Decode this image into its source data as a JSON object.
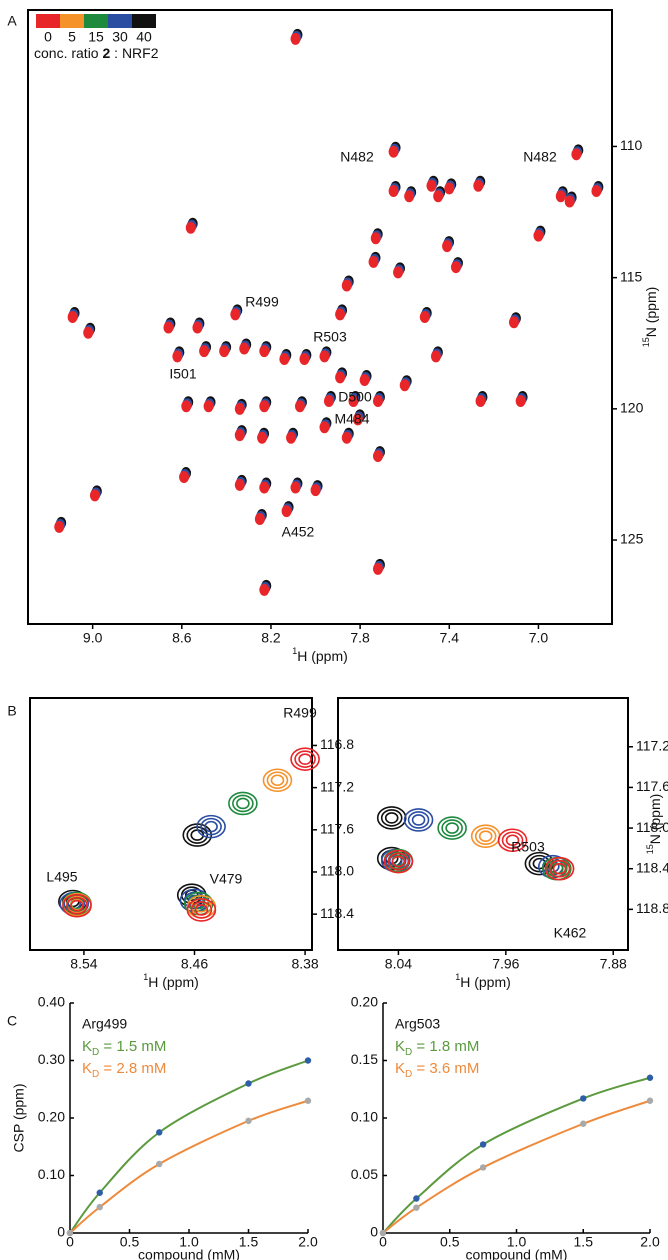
{
  "chart_data": [
    {
      "type": "scatter",
      "panel": "A",
      "x_label": {
        "sup": "1",
        "text": "H (ppm)"
      },
      "y_label": {
        "sup": "15",
        "text": "N (ppm)"
      },
      "xlim": [
        9.29,
        6.67
      ],
      "ylim": [
        128.2,
        104.8
      ],
      "xticks": [
        {
          "value": 9,
          "label": "9.0"
        },
        8.6,
        8.2,
        7.8,
        7.4,
        {
          "value": 7,
          "label": "7.0"
        }
      ],
      "yticks": [
        110,
        115,
        120,
        125
      ],
      "legend": {
        "labels": [
          "0",
          "5",
          "15",
          "30",
          "40"
        ],
        "colors": [
          "#e8262a",
          "#f5922a",
          "#1e8a3e",
          "#2b4ea2",
          "#111111"
        ],
        "caption": [
          "conc. ratio ",
          "2",
          " : NRF2"
        ]
      },
      "series": [
        {
          "color": "#e8262a",
          "x": [
            8.09,
            7.65,
            6.83,
            7.65,
            7.58,
            7.48,
            7.45,
            7.4,
            7.27,
            6.9,
            6.86,
            6.74,
            8.56,
            7.73,
            7.0,
            7.41,
            7.37,
            7.86,
            7.74,
            7.63,
            7.89,
            7.51,
            7.11,
            9.09,
            9.02,
            8.66,
            8.53,
            8.36,
            8.62,
            8.5,
            8.41,
            8.32,
            8.23,
            8.14,
            8.05,
            7.96,
            7.89,
            7.78,
            7.6,
            7.46,
            8.58,
            8.48,
            8.34,
            8.23,
            8.07,
            7.94,
            7.83,
            7.72,
            8.34,
            8.24,
            8.11,
            7.96,
            7.86,
            7.81,
            7.26,
            7.08,
            8.59,
            8.34,
            8.23,
            8.09,
            8.25,
            8.13,
            8.0,
            7.72,
            8.99,
            9.15,
            7.72,
            8.23
          ],
          "y": [
            105.9,
            110.2,
            110.3,
            111.7,
            111.9,
            111.5,
            111.9,
            111.6,
            111.5,
            111.9,
            112.1,
            111.7,
            113.1,
            113.5,
            113.4,
            113.8,
            114.6,
            115.3,
            114.4,
            114.8,
            116.4,
            116.5,
            116.7,
            116.5,
            117.1,
            116.9,
            116.9,
            116.4,
            118.0,
            117.8,
            117.8,
            117.7,
            117.8,
            118.1,
            118.1,
            118.0,
            118.8,
            118.9,
            119.1,
            118.0,
            119.9,
            119.9,
            120.0,
            119.9,
            119.9,
            119.7,
            119.7,
            119.7,
            121.0,
            121.1,
            121.1,
            120.7,
            121.1,
            120.4,
            119.7,
            119.7,
            122.6,
            122.9,
            123.0,
            123.0,
            124.2,
            123.9,
            123.1,
            121.8,
            123.3,
            124.5,
            126.1,
            126.9
          ]
        }
      ],
      "annotations": [
        "N482",
        "N482",
        "R499",
        "R503",
        "I501",
        "D500",
        "M484",
        "A452"
      ]
    },
    {
      "type": "contour",
      "panel": "B",
      "x_label": {
        "sup": "1",
        "text": "H (ppm)"
      },
      "xlim": [
        8.579,
        8.375
      ],
      "ylim": [
        118.74,
        116.35
      ],
      "xticks": [
        8.54,
        8.46,
        8.38
      ],
      "yticks": [
        116.8,
        117.2,
        117.6,
        {
          "value": 118,
          "label": "118.0"
        },
        118.4
      ],
      "series": [
        {
          "color": "#e8262a",
          "x": [
            8.38,
            8.545,
            8.455
          ],
          "y": [
            116.93,
            118.32,
            118.36
          ]
        },
        {
          "color": "#f5922a",
          "x": [
            8.4,
            8.545,
            8.455
          ],
          "y": [
            117.13,
            118.31,
            118.33
          ]
        },
        {
          "color": "#1e8a3e",
          "x": [
            8.425,
            8.545,
            8.457
          ],
          "y": [
            117.35,
            118.3,
            118.3
          ]
        },
        {
          "color": "#2b4ea2",
          "x": [
            8.448,
            8.547,
            8.46
          ],
          "y": [
            117.57,
            118.3,
            118.27
          ]
        },
        {
          "color": "#111111",
          "x": [
            8.458,
            8.548,
            8.462
          ],
          "y": [
            117.65,
            118.28,
            118.22
          ]
        }
      ],
      "peak_labels": [
        "R499",
        "L495",
        "V479"
      ]
    },
    {
      "type": "contour",
      "x_label": {
        "sup": "1",
        "text": "H (ppm)"
      },
      "y_label": {
        "sup": "15",
        "text": "N (ppm)"
      },
      "xlim": [
        8.085,
        7.869
      ],
      "ylim": [
        119.2,
        116.72
      ],
      "xticks": [
        8.04,
        7.96,
        7.88
      ],
      "yticks": [
        117.2,
        117.6,
        {
          "value": 118,
          "label": "118.0"
        },
        118.4,
        118.8
      ],
      "series": [
        {
          "color": "#e8262a",
          "x": [
            7.955,
            8.04,
            7.92
          ],
          "y": [
            118.12,
            118.33,
            118.4
          ]
        },
        {
          "color": "#f5922a",
          "x": [
            7.975,
            8.04,
            7.92
          ],
          "y": [
            118.08,
            118.33,
            118.4
          ]
        },
        {
          "color": "#1e8a3e",
          "x": [
            8.0,
            8.04,
            7.922
          ],
          "y": [
            118.0,
            118.32,
            118.4
          ]
        },
        {
          "color": "#2b4ea2",
          "x": [
            8.025,
            8.042,
            7.925
          ],
          "y": [
            117.92,
            118.32,
            118.38
          ]
        },
        {
          "color": "#111111",
          "x": [
            8.045,
            8.045,
            7.935
          ],
          "y": [
            117.9,
            118.3,
            118.35
          ]
        }
      ],
      "peak_labels": [
        "R503",
        "K462"
      ]
    },
    {
      "type": "line",
      "panel": "C",
      "title": "Arg499",
      "y_label": "CSP (ppm)",
      "x_label": "compound (mM)",
      "x": [
        0,
        0.25,
        0.75,
        1.5,
        2
      ],
      "xlim": [
        0,
        2
      ],
      "ylim": [
        0,
        0.4
      ],
      "xticks": [
        0,
        0.5,
        {
          "value": 1,
          "label": "1.0"
        },
        1.5,
        {
          "value": 2,
          "label": "2.0"
        }
      ],
      "yticks": [
        0,
        {
          "value": 0.1,
          "label": "0.10"
        },
        {
          "value": 0.2,
          "label": "0.20"
        },
        {
          "value": 0.3,
          "label": "0.30"
        },
        {
          "value": 0.4,
          "label": "0.40"
        }
      ],
      "series": [
        {
          "name": [
            "K",
            "D",
            " = 1.5 mM"
          ],
          "color": "#5b9a3e",
          "marker_color": "#2f5ea8",
          "values": [
            0,
            0.07,
            0.175,
            0.26,
            0.3
          ]
        },
        {
          "name": [
            "K",
            "D",
            " = 2.8 mM"
          ],
          "color": "#ee8a3c",
          "marker_color": "#a9a9a9",
          "values": [
            0,
            0.045,
            0.12,
            0.195,
            0.23
          ]
        }
      ]
    },
    {
      "type": "line",
      "title": "Arg503",
      "x_label": "compound (mM)",
      "x": [
        0,
        0.25,
        0.75,
        1.5,
        2
      ],
      "xlim": [
        0,
        2
      ],
      "ylim": [
        0,
        0.2
      ],
      "xticks": [
        0,
        0.5,
        {
          "value": 1,
          "label": "1.0"
        },
        1.5,
        {
          "value": 2,
          "label": "2.0"
        }
      ],
      "yticks": [
        0,
        0.05,
        {
          "value": 0.1,
          "label": "0.10"
        },
        0.15,
        {
          "value": 0.2,
          "label": "0.20"
        }
      ],
      "series": [
        {
          "name": [
            "K",
            "D",
            " = 1.8 mM"
          ],
          "color": "#5b9a3e",
          "marker_color": "#2f5ea8",
          "values": [
            0,
            0.03,
            0.077,
            0.117,
            0.135
          ]
        },
        {
          "name": [
            "K",
            "D",
            " = 3.6 mM"
          ],
          "color": "#ee8a3c",
          "marker_color": "#a9a9a9",
          "values": [
            0,
            0.022,
            0.057,
            0.095,
            0.115
          ]
        }
      ]
    }
  ]
}
